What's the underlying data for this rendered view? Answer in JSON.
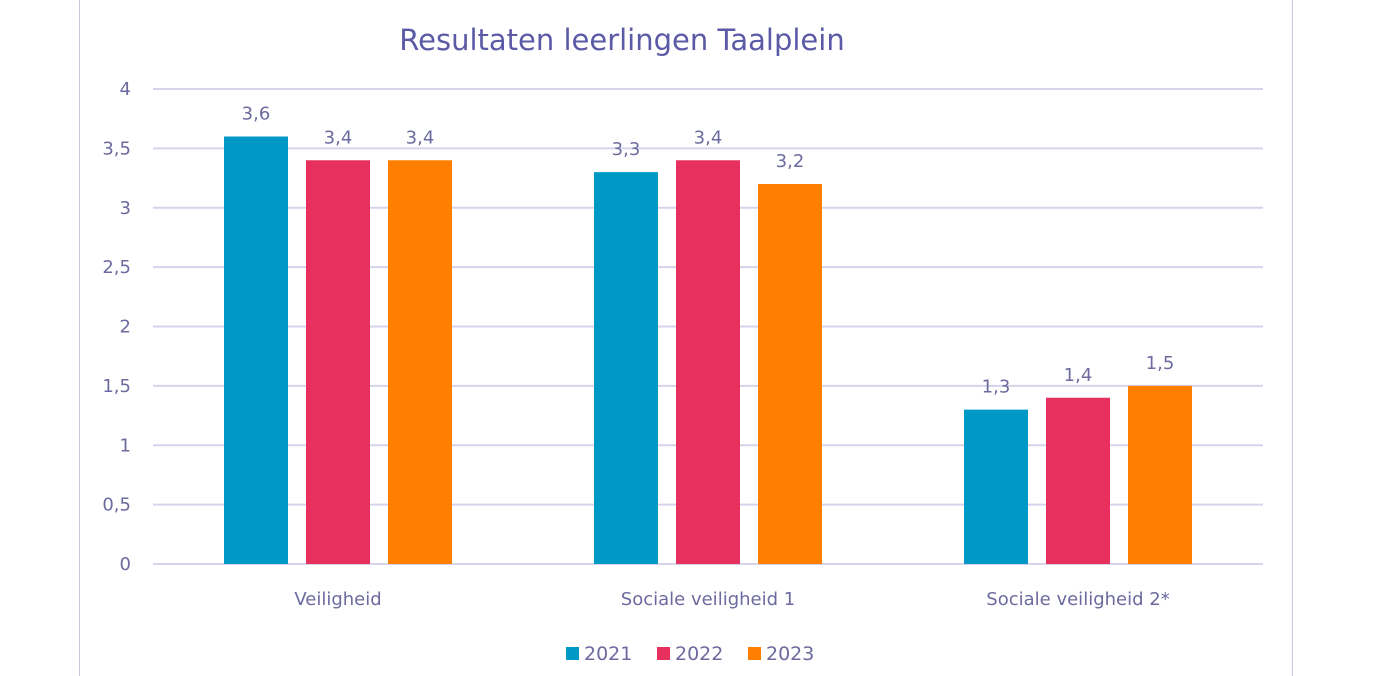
{
  "chart_data": {
    "type": "bar",
    "title": "Resultaten leerlingen Taalplein",
    "xlabel": "",
    "ylabel": "",
    "categories": [
      "Veiligheid",
      "Sociale veiligheid 1",
      "Sociale veiligheid 2*"
    ],
    "series": [
      {
        "name": "2021",
        "color": "#0099c6",
        "values": [
          3.6,
          3.3,
          1.3
        ],
        "labels": [
          "3,6",
          "3,3",
          "1,3"
        ]
      },
      {
        "name": "2022",
        "color": "#e8305e",
        "values": [
          3.4,
          3.4,
          1.4
        ],
        "labels": [
          "3,4",
          "3,4",
          "1,4"
        ]
      },
      {
        "name": "2023",
        "color": "#ff8000",
        "values": [
          3.4,
          3.2,
          1.5
        ],
        "labels": [
          "3,4",
          "3,2",
          "1,5"
        ]
      }
    ],
    "ylim": [
      0,
      4
    ],
    "yticks": [
      0,
      0.5,
      1,
      1.5,
      2,
      2.5,
      3,
      3.5,
      4
    ],
    "ytick_labels": [
      "0",
      "0,5",
      "1",
      "1,5",
      "2",
      "2,5",
      "3",
      "3,5",
      "4"
    ],
    "grid": true,
    "legend_position": "bottom"
  }
}
